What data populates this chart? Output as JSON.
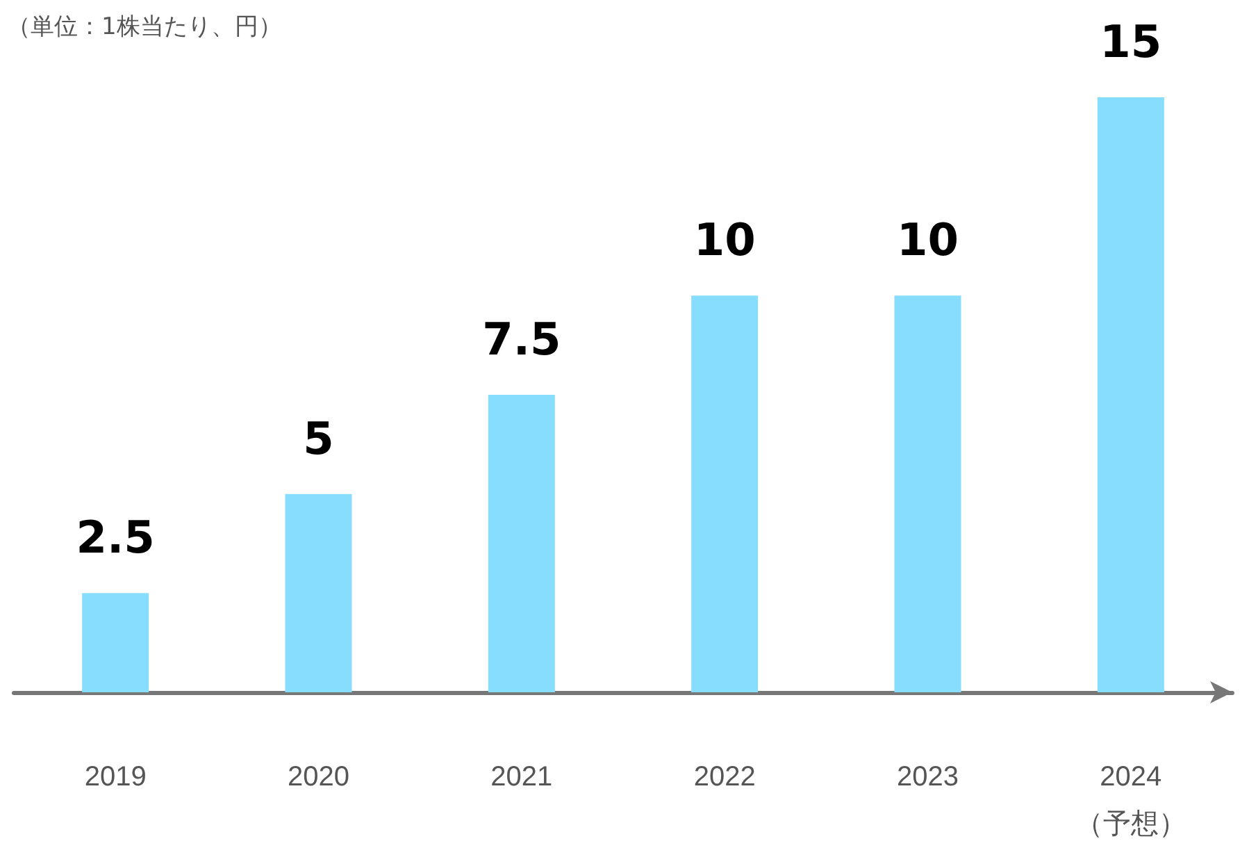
{
  "chart_data": {
    "type": "bar",
    "title": "（単位：1株当たり、円）",
    "categories": [
      "2019",
      "2020",
      "2021",
      "2022",
      "2023",
      "2024\n（予想）"
    ],
    "values": [
      2.5,
      5,
      7.5,
      10,
      10,
      15
    ],
    "color": "#87ddfd",
    "data_labels": true
  }
}
